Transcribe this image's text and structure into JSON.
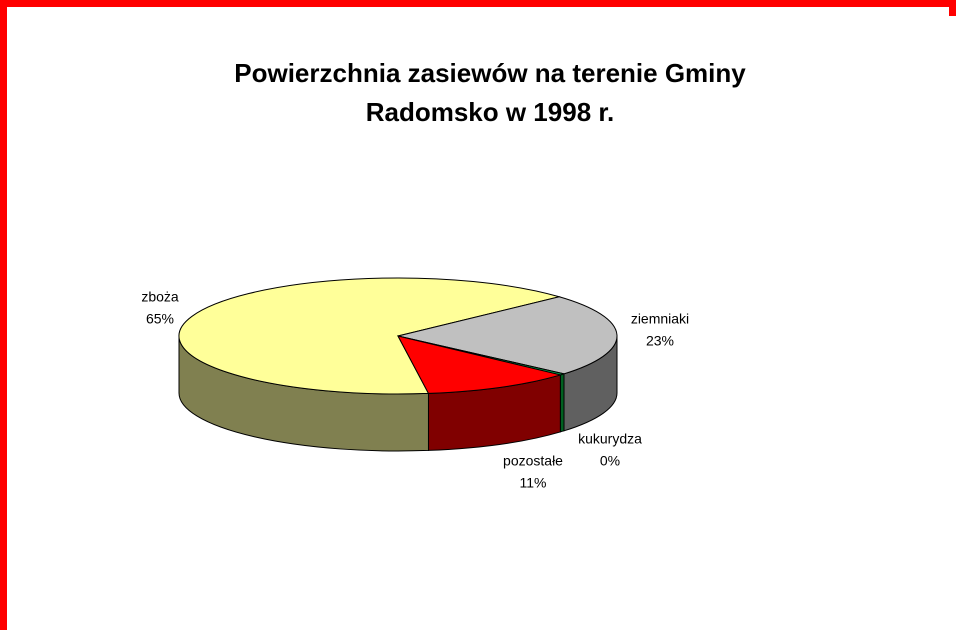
{
  "chart_data": {
    "type": "pie3d",
    "title": [
      "Powierzchnia zasiewów na terenie Gminy",
      "Radomsko w 1998 r."
    ],
    "categories": [
      "zboża",
      "ziemniaki",
      "kukurydza",
      "pozostałe"
    ],
    "values": [
      65,
      23,
      0.4,
      11
    ],
    "value_labels": [
      "65%",
      "23%",
      "0%",
      "11%"
    ],
    "colors": [
      "#ffff99",
      "#c0c0c0",
      "#00b050",
      "#ff0000"
    ],
    "side_colors": [
      "#808050",
      "#606060",
      "#006020",
      "#800000"
    ]
  }
}
